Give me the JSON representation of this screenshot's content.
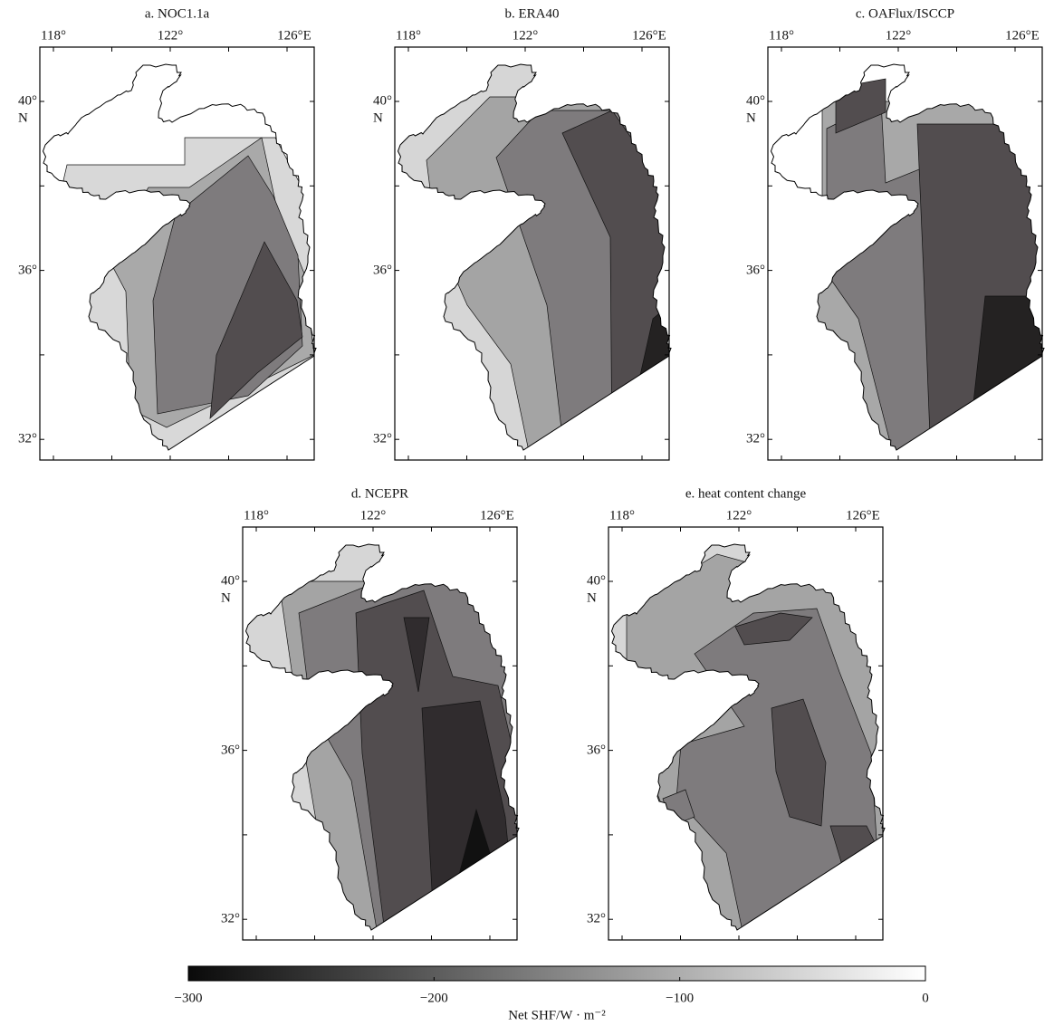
{
  "panels": [
    {
      "title": "a. NOC1.1a"
    },
    {
      "title": "b. ERA40"
    },
    {
      "title": "c. OAFlux/ISCCP"
    },
    {
      "title": "d. NCEPR"
    },
    {
      "title": "e. heat content change"
    }
  ],
  "axes": {
    "lon_labels": [
      "118°",
      "122°",
      "126°E"
    ],
    "lat_labels": [
      "40°",
      "36°",
      "32°"
    ],
    "lat_unit": "N"
  },
  "colorbar": {
    "label": "Net SHF/W · m⁻²",
    "range": [
      -300,
      0
    ],
    "ticks": [
      {
        "value": -300,
        "label": "−300"
      },
      {
        "value": -200,
        "label": "−200"
      },
      {
        "value": -100,
        "label": "−100"
      },
      0
    ],
    "colors": [
      "#0a0a0a",
      "#ffffff"
    ]
  }
}
